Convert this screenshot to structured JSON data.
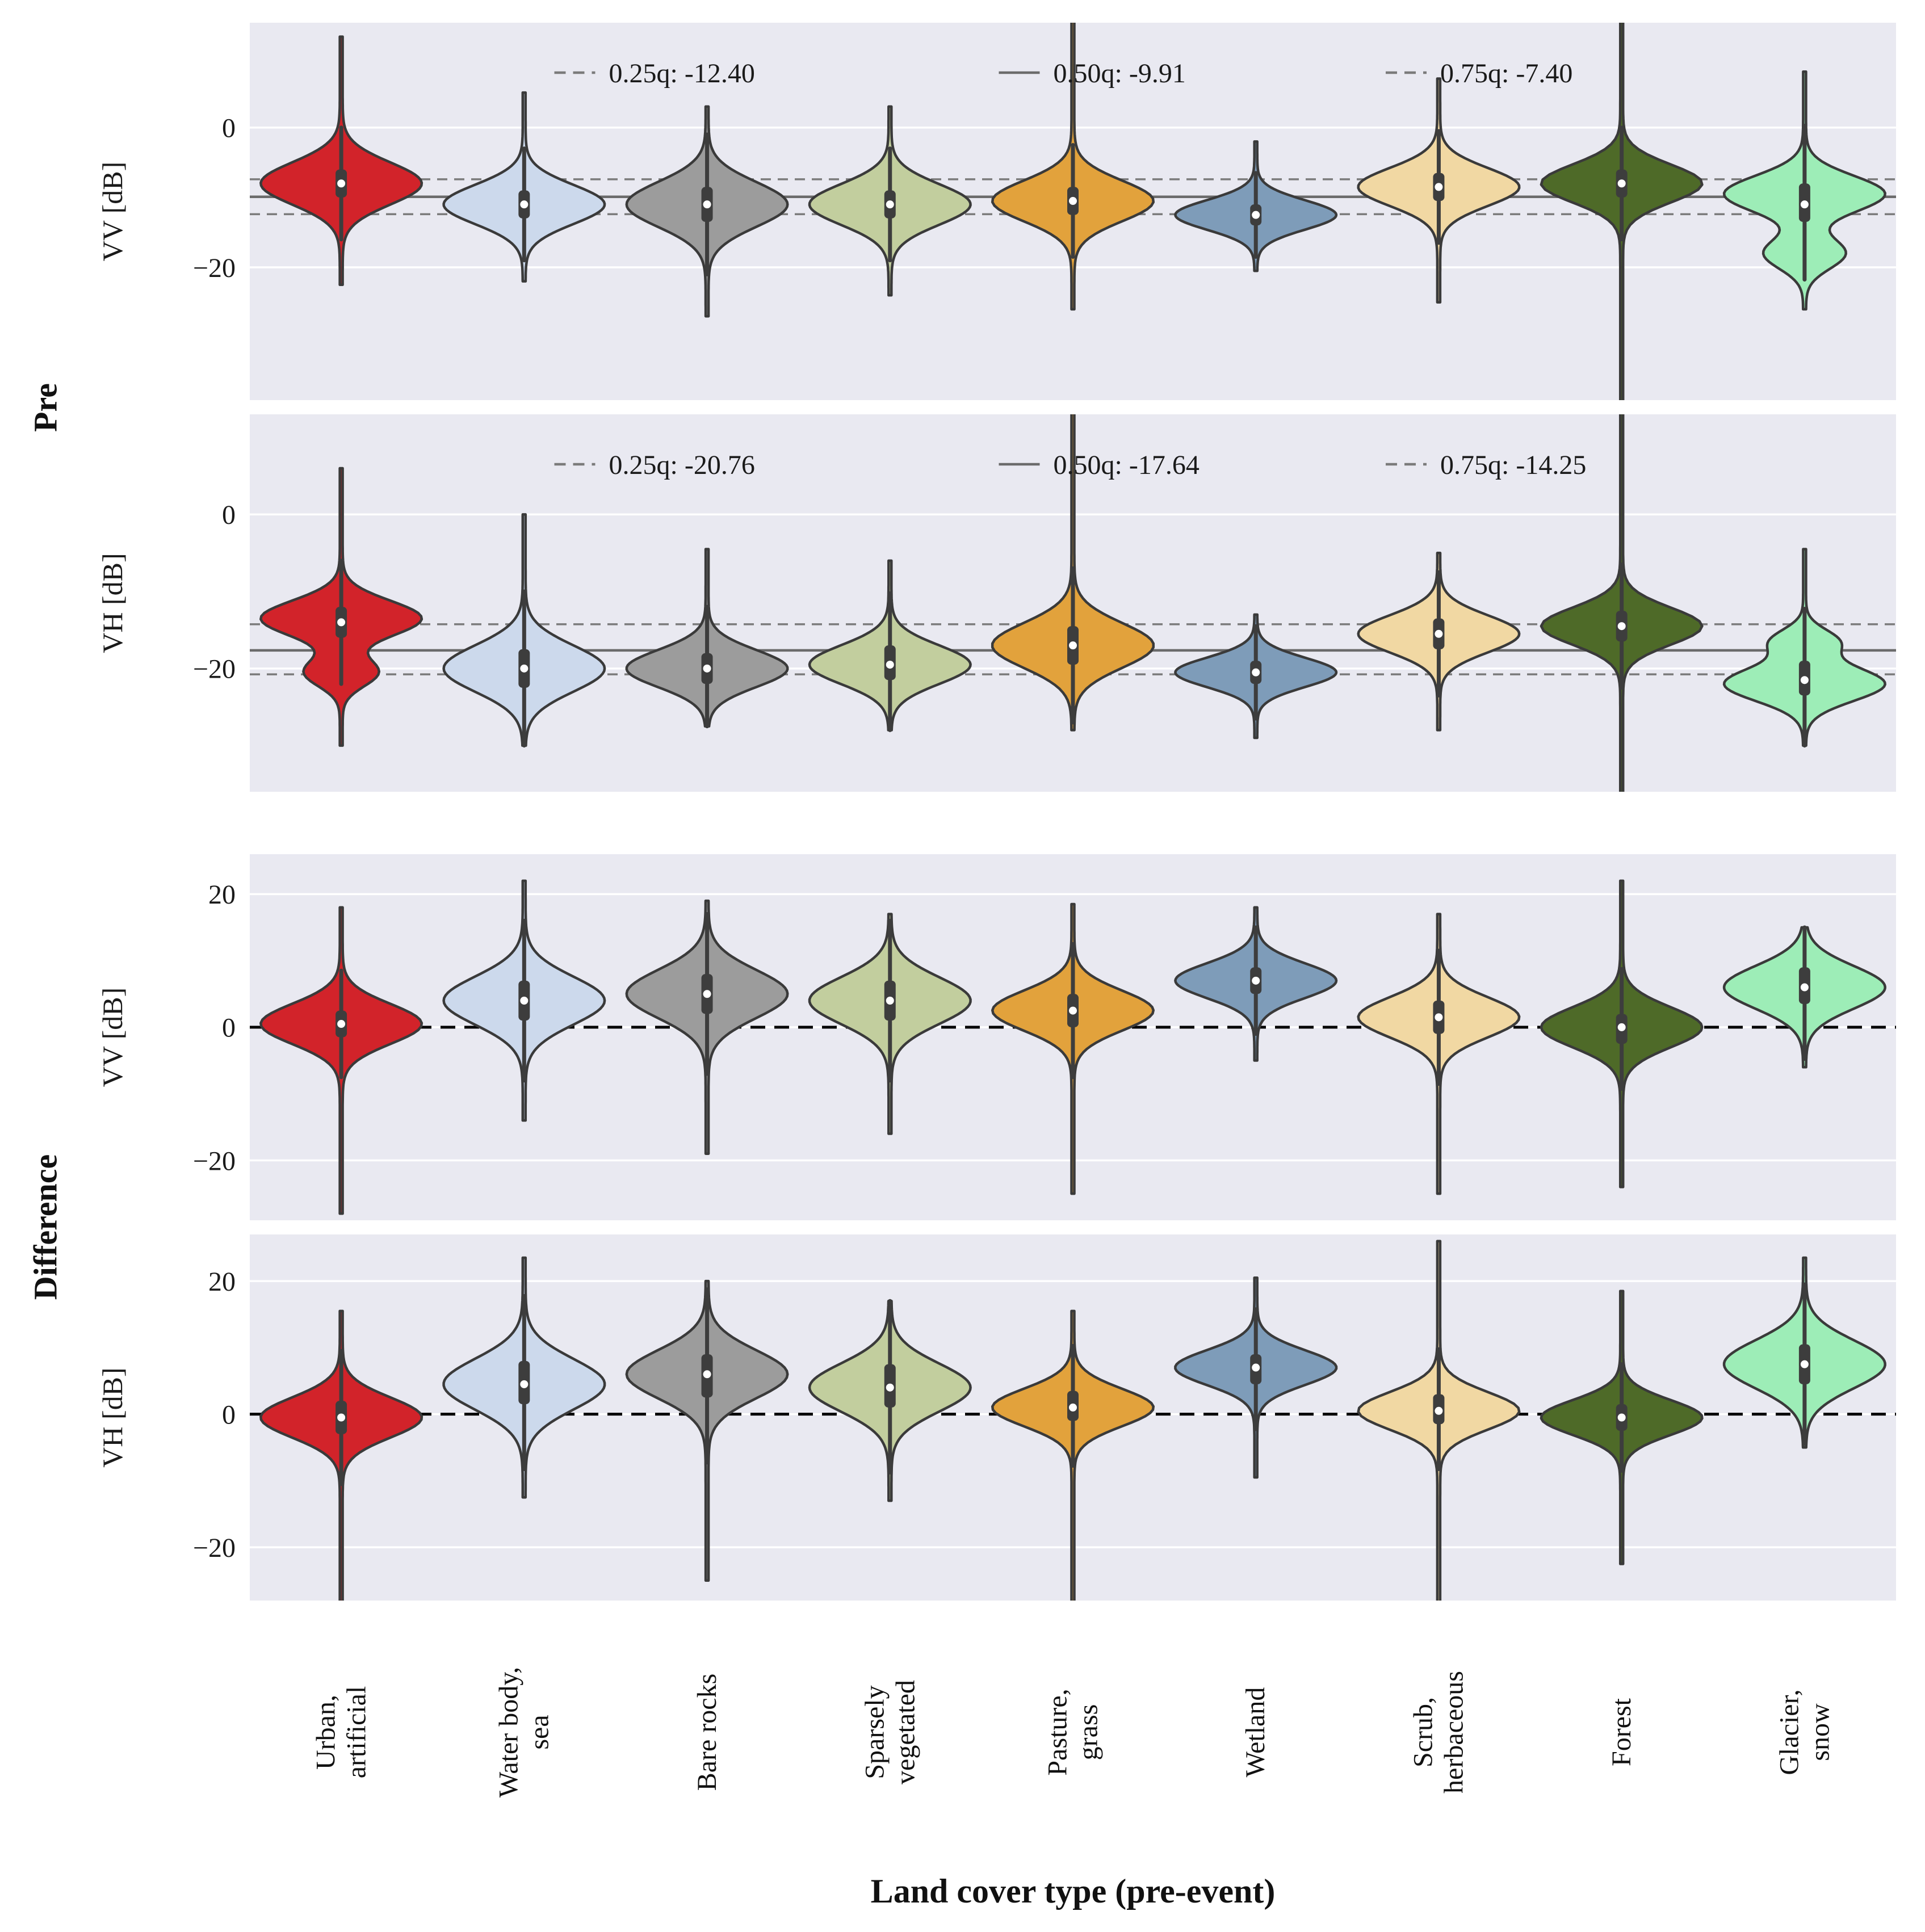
{
  "figure": {
    "xlabel": "Land cover type (pre-event)",
    "row_groups": [
      "Pre",
      "Difference"
    ],
    "colors": {
      "panel_bg": "#e9e9f1",
      "grid": "#ffffff",
      "violin_outline": "#3a3a3a",
      "box": "#3d3d3d",
      "median_dot": "#ffffff",
      "quantile_line": "#7b7b7b",
      "quantile_solid": "#6b6b6b",
      "zero_line": "#000000",
      "text": "#1a1a1a"
    }
  },
  "chart_data": {
    "type": "violin",
    "title": "",
    "xlabel": "Land cover type (pre-event)",
    "categories": [
      [
        "Urban,",
        "artificial"
      ],
      [
        "Water body,",
        "sea"
      ],
      [
        "Bare rocks"
      ],
      [
        "Sparsely",
        "vegetated"
      ],
      [
        "Pasture,",
        "grass"
      ],
      [
        "Wetland"
      ],
      [
        "Scrub,",
        "herbaceous"
      ],
      [
        "Forest"
      ],
      [
        "Glacier,",
        "snow"
      ]
    ],
    "category_colors": [
      "#d2232a",
      "#ccd9ec",
      "#9c9c9c",
      "#c2ce9e",
      "#e2a23c",
      "#7e9cb9",
      "#f1d8a3",
      "#4e6a28",
      "#9dedb7"
    ],
    "panels": [
      {
        "id": "pre-vv",
        "group": "Pre",
        "ylabel": "VV [dB]",
        "unit": "dB",
        "ylim": [
          -39,
          15
        ],
        "yticks": [
          0,
          -20
        ],
        "quantiles": {
          "q25": -12.4,
          "q50": -9.91,
          "q75": -7.4
        },
        "legend": [
          "0.25q: -12.40",
          "0.50q: -9.91",
          "0.75q: -7.40"
        ],
        "violins": [
          {
            "med": -8,
            "q1": -10,
            "q3": -6,
            "lo": -22.5,
            "hi": 13,
            "modes": [
              [
                -8,
                3.0,
                1
              ]
            ]
          },
          {
            "med": -11,
            "q1": -13,
            "q3": -9,
            "lo": -22,
            "hi": 5,
            "modes": [
              [
                -11,
                2.8,
                1
              ]
            ]
          },
          {
            "med": -11,
            "q1": -13.5,
            "q3": -8.5,
            "lo": -27,
            "hi": 3,
            "modes": [
              [
                -11,
                3.2,
                1
              ]
            ]
          },
          {
            "med": -11,
            "q1": -13,
            "q3": -9,
            "lo": -24,
            "hi": 3,
            "modes": [
              [
                -11,
                2.9,
                1
              ]
            ]
          },
          {
            "med": -10.5,
            "q1": -12.5,
            "q3": -8.5,
            "lo": -26,
            "hi": 20,
            "modes": [
              [
                -10.5,
                2.9,
                1
              ]
            ]
          },
          {
            "med": -12.5,
            "q1": -14,
            "q3": -11,
            "lo": -20.5,
            "hi": -2,
            "modes": [
              [
                -12.5,
                2.1,
                1
              ]
            ]
          },
          {
            "med": -8.5,
            "q1": -10.5,
            "q3": -6.5,
            "lo": -25,
            "hi": 7,
            "modes": [
              [
                -8.5,
                2.7,
                1
              ]
            ]
          },
          {
            "med": -8,
            "q1": -10,
            "q3": -6,
            "lo": -45,
            "hi": 20,
            "modes": [
              [
                -8,
                2.7,
                1
              ]
            ]
          },
          {
            "med": -11,
            "q1": -13.5,
            "q3": -8,
            "lo": -26,
            "hi": 8,
            "modes": [
              [
                -9.5,
                2.6,
                1
              ],
              [
                -18,
                2.2,
                0.5
              ]
            ]
          }
        ]
      },
      {
        "id": "pre-vh",
        "group": "Pre",
        "ylabel": "VH [dB]",
        "unit": "dB",
        "ylim": [
          -36,
          13
        ],
        "yticks": [
          0,
          -20
        ],
        "quantiles": {
          "q25": -20.76,
          "q50": -17.64,
          "q75": -14.25
        },
        "legend": [
          "0.25q: -20.76",
          "0.50q: -17.64",
          "0.75q: -14.25"
        ],
        "violins": [
          {
            "med": -14,
            "q1": -16,
            "q3": -12,
            "lo": -30,
            "hi": 6,
            "modes": [
              [
                -13.5,
                2.3,
                1
              ],
              [
                -20.5,
                1.8,
                0.45
              ]
            ]
          },
          {
            "med": -20,
            "q1": -22.5,
            "q3": -17.5,
            "lo": -30,
            "hi": 0,
            "modes": [
              [
                -20,
                3.0,
                1
              ]
            ]
          },
          {
            "med": -20,
            "q1": -22,
            "q3": -18,
            "lo": -27.5,
            "hi": -4.5,
            "modes": [
              [
                -20,
                2.4,
                1
              ]
            ]
          },
          {
            "med": -19.5,
            "q1": -21.5,
            "q3": -17,
            "lo": -28,
            "hi": -6,
            "modes": [
              [
                -19.5,
                2.5,
                1
              ]
            ]
          },
          {
            "med": -17,
            "q1": -19.5,
            "q3": -14.5,
            "lo": -28,
            "hi": 16,
            "modes": [
              [
                -17,
                2.9,
                1
              ]
            ]
          },
          {
            "med": -20.5,
            "q1": -22,
            "q3": -19,
            "lo": -29,
            "hi": -13,
            "modes": [
              [
                -20.5,
                1.9,
                1
              ]
            ]
          },
          {
            "med": -15.5,
            "q1": -17.5,
            "q3": -13.5,
            "lo": -28,
            "hi": -5,
            "modes": [
              [
                -15.5,
                2.4,
                1
              ]
            ]
          },
          {
            "med": -14.5,
            "q1": -16.5,
            "q3": -12.5,
            "lo": -40,
            "hi": 16,
            "modes": [
              [
                -14.5,
                2.4,
                1
              ]
            ]
          },
          {
            "med": -21.5,
            "q1": -23.5,
            "q3": -19,
            "lo": -30,
            "hi": -4.5,
            "modes": [
              [
                -22,
                2.2,
                1
              ],
              [
                -16.5,
                1.6,
                0.4
              ]
            ]
          }
        ]
      },
      {
        "id": "diff-vv",
        "group": "Difference",
        "ylabel": "VV [dB]",
        "unit": "dB",
        "ylim": [
          -29,
          26
        ],
        "yticks": [
          20,
          0,
          -20
        ],
        "zero_line": true,
        "violins": [
          {
            "med": 0.5,
            "q1": -1.5,
            "q3": 2.5,
            "lo": -28,
            "hi": 18,
            "modes": [
              [
                0.5,
                3.0,
                1
              ]
            ]
          },
          {
            "med": 4,
            "q1": 1,
            "q3": 7,
            "lo": -14,
            "hi": 22,
            "modes": [
              [
                4,
                3.6,
                1
              ]
            ]
          },
          {
            "med": 5,
            "q1": 2,
            "q3": 8,
            "lo": -19,
            "hi": 19,
            "modes": [
              [
                5,
                3.6,
                1
              ]
            ]
          },
          {
            "med": 4,
            "q1": 1,
            "q3": 7,
            "lo": -16,
            "hi": 17,
            "modes": [
              [
                4,
                3.5,
                1
              ]
            ]
          },
          {
            "med": 2.5,
            "q1": 0,
            "q3": 5,
            "lo": -25,
            "hi": 18.5,
            "modes": [
              [
                2.5,
                3.0,
                1
              ]
            ]
          },
          {
            "med": 7,
            "q1": 5,
            "q3": 9,
            "lo": -5,
            "hi": 18,
            "modes": [
              [
                7,
                2.6,
                1
              ]
            ]
          },
          {
            "med": 1.5,
            "q1": -1,
            "q3": 4,
            "lo": -25,
            "hi": 17,
            "modes": [
              [
                1.5,
                3.0,
                1
              ]
            ]
          },
          {
            "med": 0,
            "q1": -2.5,
            "q3": 2,
            "lo": -24,
            "hi": 22,
            "modes": [
              [
                0,
                3.0,
                1
              ]
            ]
          },
          {
            "med": 6,
            "q1": 3.5,
            "q3": 9,
            "lo": -6,
            "hi": 15,
            "modes": [
              [
                6,
                3.2,
                1
              ]
            ]
          }
        ]
      },
      {
        "id": "diff-vh",
        "group": "Difference",
        "ylabel": "VH [dB]",
        "unit": "dB",
        "ylim": [
          -28,
          27
        ],
        "yticks": [
          20,
          0,
          -20
        ],
        "zero_line": true,
        "violins": [
          {
            "med": -0.5,
            "q1": -3,
            "q3": 2,
            "lo": -29,
            "hi": 15.5,
            "modes": [
              [
                -0.5,
                3.0,
                1
              ]
            ]
          },
          {
            "med": 4.5,
            "q1": 1.5,
            "q3": 8,
            "lo": -12.5,
            "hi": 23.5,
            "modes": [
              [
                4.5,
                3.8,
                1
              ]
            ]
          },
          {
            "med": 6,
            "q1": 2.5,
            "q3": 9,
            "lo": -25,
            "hi": 20,
            "modes": [
              [
                6,
                3.6,
                1
              ]
            ]
          },
          {
            "med": 4,
            "q1": 1,
            "q3": 7.5,
            "lo": -13,
            "hi": 17,
            "modes": [
              [
                4,
                3.6,
                1
              ]
            ]
          },
          {
            "med": 1,
            "q1": -1,
            "q3": 3.5,
            "lo": -29,
            "hi": 15.5,
            "modes": [
              [
                1,
                2.8,
                1
              ]
            ]
          },
          {
            "med": 7,
            "q1": 4.5,
            "q3": 9,
            "lo": -9.5,
            "hi": 20.5,
            "modes": [
              [
                7,
                2.6,
                1
              ]
            ]
          },
          {
            "med": 0.5,
            "q1": -1.5,
            "q3": 3,
            "lo": -29,
            "hi": 26,
            "modes": [
              [
                0.5,
                2.8,
                1
              ]
            ]
          },
          {
            "med": -0.5,
            "q1": -2.5,
            "q3": 1.5,
            "lo": -22.5,
            "hi": 18.5,
            "modes": [
              [
                -0.5,
                2.6,
                1
              ]
            ]
          },
          {
            "med": 7.5,
            "q1": 4.5,
            "q3": 10.5,
            "lo": -5,
            "hi": 23.5,
            "modes": [
              [
                7.5,
                3.6,
                1
              ]
            ]
          }
        ]
      }
    ]
  }
}
